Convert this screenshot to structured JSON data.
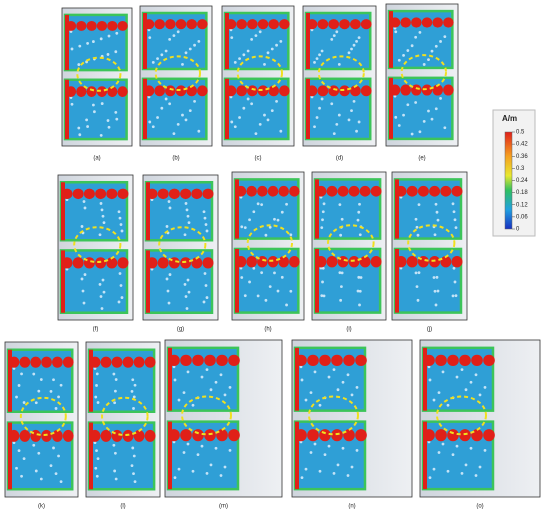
{
  "panels": [
    "(a)",
    "(b)",
    "(c)",
    "(d)",
    "(e)",
    "(f)",
    "(g)",
    "(h)",
    "(i)",
    "(j)",
    "(k)",
    "(l)",
    "(m)",
    "(n)",
    "(o)"
  ],
  "colorbar": {
    "unit": "A/m",
    "ticks": [
      "0.5",
      "0.42",
      "0.36",
      "0.3",
      "0.24",
      "0.18",
      "0.12",
      "0.06",
      "0"
    ]
  }
}
